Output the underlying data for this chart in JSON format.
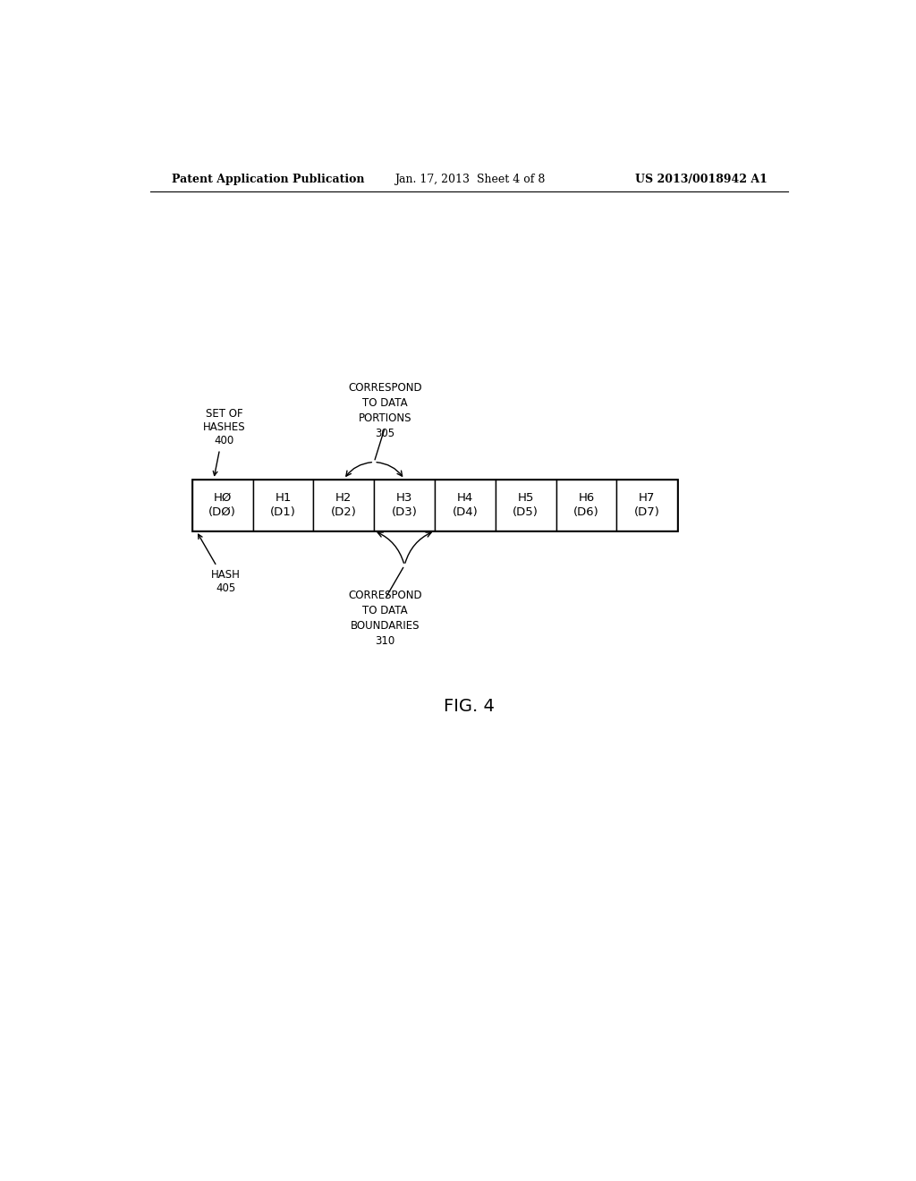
{
  "background_color": "#ffffff",
  "header_left": "Patent Application Publication",
  "header_center": "Jan. 17, 2013  Sheet 4 of 8",
  "header_right": "US 2013/0018942 A1",
  "fig_label": "FIG. 4",
  "cells": [
    {
      "label": "HØ\n(DØ)"
    },
    {
      "label": "H1\n(D1)"
    },
    {
      "label": "H2\n(D2)"
    },
    {
      "label": "H3\n(D3)"
    },
    {
      "label": "H4\n(D4)"
    },
    {
      "label": "H5\n(D5)"
    },
    {
      "label": "H6\n(D6)"
    },
    {
      "label": "H7\n(D7)"
    }
  ],
  "label_set_of_hashes": "SET OF\nHASHES\n400",
  "label_correspond_portions": "CORRESPOND\nTO DATA\nPORTIONS\n305",
  "label_hash": "HASH\n405",
  "label_correspond_boundaries": "CORRESPOND\nTO DATA\nBOUNDARIES\n310",
  "fontsize_cell": 9.5,
  "fontsize_label": 8.5,
  "fontsize_header": 9,
  "fontsize_fig": 14
}
